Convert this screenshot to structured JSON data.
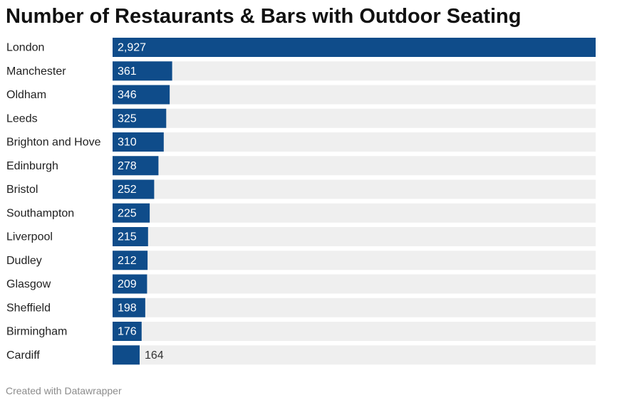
{
  "chart_data": {
    "type": "bar",
    "orientation": "horizontal",
    "title": "Number of Restaurants & Bars with Outdoor Seating",
    "categories": [
      "London",
      "Manchester",
      "Oldham",
      "Leeds",
      "Brighton and Hove",
      "Edinburgh",
      "Bristol",
      "Southampton",
      "Liverpool",
      "Dudley",
      "Glasgow",
      "Sheffield",
      "Birmingham",
      "Cardiff"
    ],
    "values": [
      2927,
      361,
      346,
      325,
      310,
      278,
      252,
      225,
      215,
      212,
      209,
      198,
      176,
      164
    ],
    "value_labels": [
      "2,927",
      "361",
      "346",
      "325",
      "310",
      "278",
      "252",
      "225",
      "215",
      "212",
      "209",
      "198",
      "176",
      "164"
    ],
    "xlim": [
      0,
      2927
    ],
    "grid": false,
    "legend": "none",
    "colors": {
      "bar": "#0f4c8a",
      "track": "#efefef",
      "label_inside": "#ffffff",
      "label_outside": "#333333"
    }
  },
  "footer": {
    "credit": "Created with Datawrapper"
  }
}
